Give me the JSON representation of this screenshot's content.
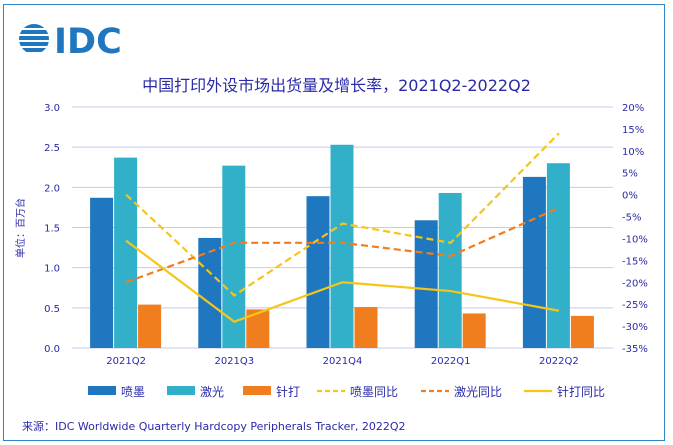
{
  "logo_text": "IDC",
  "chart_data": {
    "type": "bar+line",
    "title": "中国打印外设市场出货量及增长率，2021Q2-2022Q2",
    "ylabel": "单位：百万台",
    "categories": [
      "2021Q2",
      "2021Q3",
      "2021Q4",
      "2022Q1",
      "2022Q2"
    ],
    "ylim": [
      0,
      3.0
    ],
    "yticks": [
      "0.0",
      "0.5",
      "1.0",
      "1.5",
      "2.0",
      "2.5",
      "3.0"
    ],
    "y2lim": [
      -35,
      20
    ],
    "y2ticks": [
      "-35%",
      "-30%",
      "-25%",
      "-20%",
      "-15%",
      "-10%",
      "-5%",
      "0%",
      "5%",
      "10%",
      "15%",
      "20%"
    ],
    "grid": true,
    "legend_position": "bottom",
    "bar_series": [
      {
        "name": "喷墨",
        "color": "#1f77bf",
        "values": [
          1.87,
          1.37,
          1.89,
          1.59,
          2.13
        ]
      },
      {
        "name": "激光",
        "color": "#33b0c9",
        "values": [
          2.37,
          2.27,
          2.53,
          1.93,
          2.3
        ]
      },
      {
        "name": "针打",
        "color": "#f07d1e",
        "values": [
          0.54,
          0.48,
          0.51,
          0.43,
          0.4
        ]
      }
    ],
    "line_series": [
      {
        "name": "喷墨同比",
        "color": "#f5c518",
        "dash": true,
        "values": [
          0,
          -23,
          -6.6,
          -11,
          14
        ]
      },
      {
        "name": "激光同比",
        "color": "#f07d1e",
        "dash": true,
        "values": [
          -20,
          -11,
          -11,
          -14,
          -3
        ]
      },
      {
        "name": "针打同比",
        "color": "#f5c518",
        "dash": false,
        "values": [
          -10.5,
          -29,
          -20,
          -22,
          -26.5
        ]
      }
    ]
  },
  "source": "来源：IDC Worldwide Quarterly Hardcopy Peripherals Tracker, 2022Q2"
}
